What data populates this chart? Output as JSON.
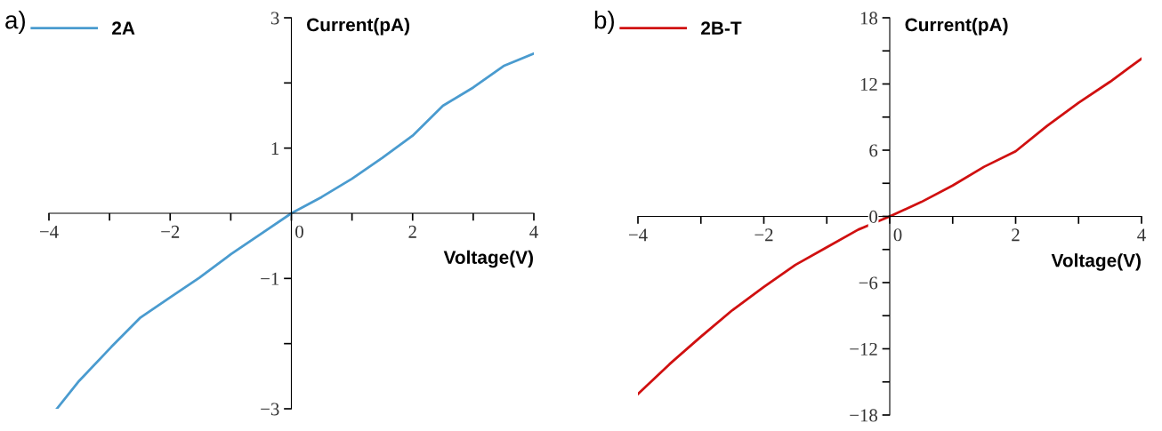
{
  "chart_data": [
    {
      "type": "line",
      "xlabel": "Voltage(V)",
      "ylabel": "Current(pA)",
      "annotations": [
        "a)"
      ],
      "legend": "top left",
      "grid": false,
      "marker": "none",
      "line_style": "solid",
      "xlim": [
        -4,
        4
      ],
      "ylim": [
        -3,
        3
      ],
      "xticks": [
        -4,
        {
          "value": -3,
          "label": null
        },
        -2,
        {
          "value": -1,
          "label": null
        },
        0,
        {
          "value": 1,
          "label": null
        },
        2,
        {
          "value": 3,
          "label": null
        },
        4
      ],
      "yticks": [
        -3,
        {
          "value": -2,
          "label": null
        },
        {
          "value": -1,
          "label": "−1"
        },
        1,
        {
          "value": 2,
          "label": null
        },
        3
      ],
      "series": [
        {
          "name": "2A",
          "color": "#4a9bcf",
          "x": [
            -3.87,
            -3.5,
            -2.97,
            -2.49,
            -2.0,
            -1.52,
            -1.0,
            0,
            0.5,
            1.0,
            1.5,
            2.0,
            2.5,
            3.0,
            3.5,
            4.0
          ],
          "values": [
            -3.0,
            -2.57,
            -2.05,
            -1.6,
            -1.29,
            -0.99,
            -0.63,
            0,
            0.25,
            0.53,
            0.85,
            1.19,
            1.65,
            1.93,
            2.26,
            2.45
          ]
        }
      ]
    },
    {
      "type": "line",
      "xlabel": "Voltage(V)",
      "ylabel": "Current(pA)",
      "annotations": [
        "b)"
      ],
      "legend": "top left",
      "grid": false,
      "marker": "none",
      "line_style": "solid",
      "xlim": [
        -4,
        4
      ],
      "ylim": [
        -18,
        18
      ],
      "xticks": [
        -4,
        {
          "value": -3,
          "label": null
        },
        -2,
        {
          "value": -1,
          "label": null
        },
        0,
        {
          "value": 1,
          "label": null
        },
        2,
        {
          "value": 3,
          "label": null
        },
        4
      ],
      "yticks": [
        -18,
        {
          "value": -15,
          "label": null
        },
        -12,
        {
          "value": -9,
          "label": null
        },
        -6,
        {
          "value": -3,
          "label": null
        },
        0,
        {
          "value": 3,
          "label": null
        },
        6,
        {
          "value": 9,
          "label": null
        },
        12,
        {
          "value": 15,
          "label": null
        },
        18
      ],
      "series": [
        {
          "name": "2B-T",
          "color": "#d01010",
          "x": [
            -4.0,
            -3.5,
            -3.0,
            -2.5,
            -2.0,
            -1.5,
            -1.0,
            -0.5,
            0,
            0.5,
            1.0,
            1.5,
            2.0,
            2.5,
            3.0,
            3.5,
            4.0
          ],
          "values": [
            -16.1,
            -13.4,
            -10.9,
            -8.5,
            -6.4,
            -4.4,
            -2.8,
            -1.2,
            0,
            1.3,
            2.8,
            4.5,
            5.9,
            8.2,
            10.3,
            12.2,
            14.3
          ]
        }
      ]
    }
  ]
}
